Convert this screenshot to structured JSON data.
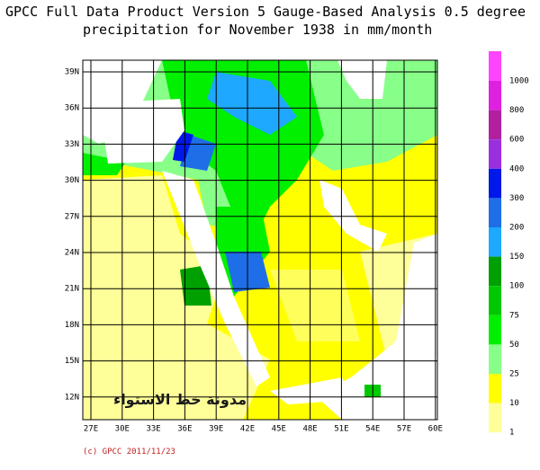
{
  "title": {
    "line1": "GPCC Full Data Product Version 5 Gauge-Based Analysis 0.5 degree",
    "line2": "precipitation for November  1938 in mm/month"
  },
  "map": {
    "lat_labels": [
      "39N",
      "36N",
      "33N",
      "30N",
      "27N",
      "24N",
      "21N",
      "18N",
      "15N",
      "12N"
    ],
    "lon_labels": [
      "27E",
      "30E",
      "33E",
      "36E",
      "39E",
      "42E",
      "45E",
      "48E",
      "51E",
      "54E",
      "57E",
      "60E"
    ],
    "watermark": "مدونة خط الاستواء",
    "credit": "(c) GPCC 2011/11/23"
  },
  "colorbar": {
    "levels": [
      1000,
      800,
      600,
      400,
      300,
      200,
      150,
      100,
      75,
      50,
      25,
      10,
      1
    ],
    "colors": [
      "#ff44ff",
      "#e020e0",
      "#b0209f",
      "#9a2fe0",
      "#0018e8",
      "#1e6ee8",
      "#1ea8ff",
      "#00a000",
      "#00c800",
      "#00f000",
      "#88ff88",
      "#ffff00",
      "#ffff99"
    ]
  }
}
